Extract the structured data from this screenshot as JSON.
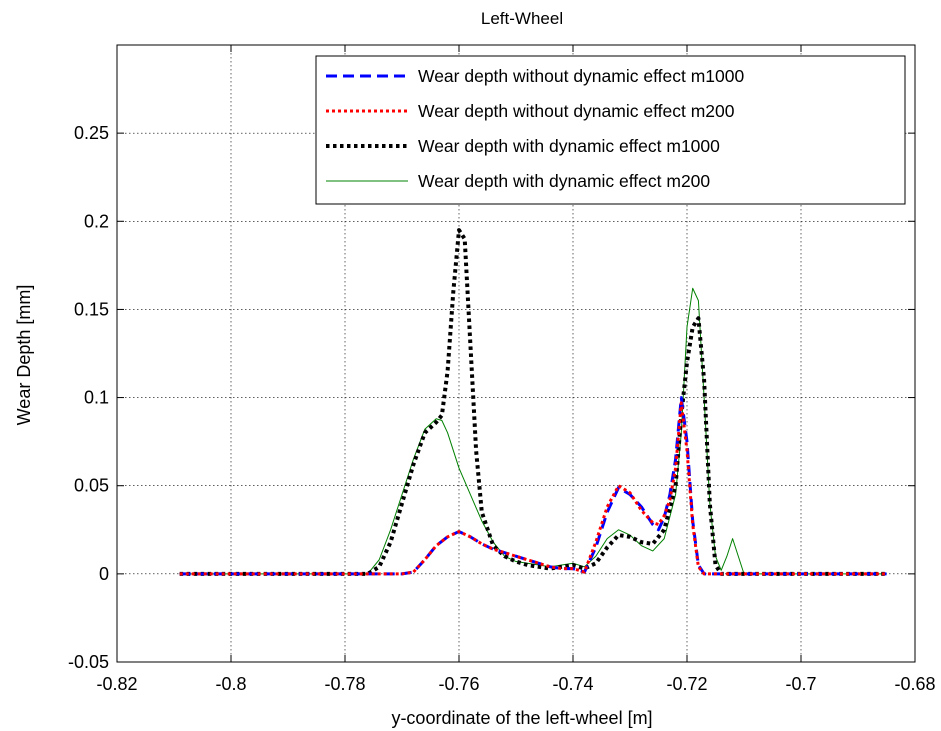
{
  "chart_data": {
    "type": "line",
    "title": "Left-Wheel",
    "xlabel": "y-coordinate of the left-wheel [m]",
    "ylabel": "Wear Depth [mm]",
    "xlim": [
      -0.82,
      -0.68
    ],
    "ylim": [
      -0.05,
      0.3
    ],
    "xticks": [
      -0.82,
      -0.8,
      -0.78,
      -0.76,
      -0.74,
      -0.72,
      -0.7,
      -0.68
    ],
    "xtick_labels": [
      "-0.82",
      "-0.8",
      "-0.78",
      "-0.76",
      "-0.74",
      "-0.72",
      "-0.7",
      "-0.68"
    ],
    "yticks": [
      -0.05,
      0,
      0.05,
      0.1,
      0.15,
      0.2,
      0.25
    ],
    "ytick_labels": [
      "-0.05",
      "0",
      "0.05",
      "0.1",
      "0.15",
      "0.2",
      "0.25"
    ],
    "grid": true,
    "legend_position": "top-right",
    "series": [
      {
        "name": "Wear depth without dynamic effect m1000",
        "color": "#0000ff",
        "style": "dashed",
        "points": [
          [
            -0.809,
            0
          ],
          [
            -0.77,
            0
          ],
          [
            -0.768,
            0.001
          ],
          [
            -0.766,
            0.008
          ],
          [
            -0.764,
            0.016
          ],
          [
            -0.762,
            0.021
          ],
          [
            -0.76,
            0.024
          ],
          [
            -0.758,
            0.021
          ],
          [
            -0.756,
            0.017
          ],
          [
            -0.754,
            0.014
          ],
          [
            -0.752,
            0.012
          ],
          [
            -0.75,
            0.01
          ],
          [
            -0.748,
            0.008
          ],
          [
            -0.746,
            0.006
          ],
          [
            -0.744,
            0.004
          ],
          [
            -0.742,
            0.003
          ],
          [
            -0.74,
            0.003
          ],
          [
            -0.738,
            0.001
          ],
          [
            -0.736,
            0.015
          ],
          [
            -0.734,
            0.035
          ],
          [
            -0.732,
            0.049
          ],
          [
            -0.73,
            0.045
          ],
          [
            -0.728,
            0.038
          ],
          [
            -0.726,
            0.028
          ],
          [
            -0.725,
            0.025
          ],
          [
            -0.724,
            0.032
          ],
          [
            -0.723,
            0.045
          ],
          [
            -0.722,
            0.065
          ],
          [
            -0.721,
            0.1
          ],
          [
            -0.72,
            0.075
          ],
          [
            -0.719,
            0.03
          ],
          [
            -0.718,
            0.005
          ],
          [
            -0.717,
            0
          ],
          [
            -0.685,
            0
          ]
        ]
      },
      {
        "name": "Wear depth without dynamic effect m200",
        "color": "#ff0000",
        "style": "dotted",
        "points": [
          [
            -0.809,
            0
          ],
          [
            -0.77,
            0
          ],
          [
            -0.768,
            0.001
          ],
          [
            -0.766,
            0.008
          ],
          [
            -0.764,
            0.016
          ],
          [
            -0.762,
            0.021
          ],
          [
            -0.76,
            0.024
          ],
          [
            -0.758,
            0.021
          ],
          [
            -0.756,
            0.017
          ],
          [
            -0.754,
            0.014
          ],
          [
            -0.752,
            0.012
          ],
          [
            -0.75,
            0.01
          ],
          [
            -0.748,
            0.008
          ],
          [
            -0.746,
            0.006
          ],
          [
            -0.744,
            0.004
          ],
          [
            -0.742,
            0.003
          ],
          [
            -0.74,
            0.003
          ],
          [
            -0.738,
            0.001
          ],
          [
            -0.736,
            0.018
          ],
          [
            -0.734,
            0.038
          ],
          [
            -0.732,
            0.05
          ],
          [
            -0.73,
            0.046
          ],
          [
            -0.728,
            0.036
          ],
          [
            -0.726,
            0.029
          ],
          [
            -0.725,
            0.028
          ],
          [
            -0.724,
            0.033
          ],
          [
            -0.723,
            0.042
          ],
          [
            -0.722,
            0.06
          ],
          [
            -0.721,
            0.097
          ],
          [
            -0.72,
            0.07
          ],
          [
            -0.719,
            0.028
          ],
          [
            -0.718,
            0.004
          ],
          [
            -0.717,
            0
          ],
          [
            -0.685,
            0
          ]
        ]
      },
      {
        "name": "Wear depth with dynamic effect m1000",
        "color": "#000000",
        "style": "dotted",
        "points": [
          [
            -0.809,
            0
          ],
          [
            -0.776,
            0
          ],
          [
            -0.774,
            0.004
          ],
          [
            -0.772,
            0.018
          ],
          [
            -0.77,
            0.04
          ],
          [
            -0.768,
            0.062
          ],
          [
            -0.766,
            0.08
          ],
          [
            -0.764,
            0.086
          ],
          [
            -0.763,
            0.09
          ],
          [
            -0.762,
            0.115
          ],
          [
            -0.761,
            0.16
          ],
          [
            -0.76,
            0.195
          ],
          [
            -0.759,
            0.19
          ],
          [
            -0.758,
            0.13
          ],
          [
            -0.757,
            0.07
          ],
          [
            -0.756,
            0.035
          ],
          [
            -0.754,
            0.016
          ],
          [
            -0.752,
            0.01
          ],
          [
            -0.75,
            0.007
          ],
          [
            -0.748,
            0.005
          ],
          [
            -0.746,
            0.004
          ],
          [
            -0.744,
            0.003
          ],
          [
            -0.742,
            0.004
          ],
          [
            -0.74,
            0.005
          ],
          [
            -0.738,
            0.003
          ],
          [
            -0.736,
            0.006
          ],
          [
            -0.734,
            0.015
          ],
          [
            -0.732,
            0.022
          ],
          [
            -0.73,
            0.021
          ],
          [
            -0.728,
            0.018
          ],
          [
            -0.726,
            0.017
          ],
          [
            -0.724,
            0.025
          ],
          [
            -0.722,
            0.05
          ],
          [
            -0.721,
            0.09
          ],
          [
            -0.72,
            0.12
          ],
          [
            -0.719,
            0.14
          ],
          [
            -0.718,
            0.145
          ],
          [
            -0.717,
            0.11
          ],
          [
            -0.716,
            0.04
          ],
          [
            -0.715,
            0.005
          ],
          [
            -0.714,
            0
          ],
          [
            -0.685,
            0
          ]
        ]
      },
      {
        "name": "Wear depth with dynamic effect m200",
        "color": "#008000",
        "style": "solid",
        "points": [
          [
            -0.809,
            0
          ],
          [
            -0.776,
            0
          ],
          [
            -0.774,
            0.008
          ],
          [
            -0.772,
            0.025
          ],
          [
            -0.77,
            0.045
          ],
          [
            -0.768,
            0.065
          ],
          [
            -0.766,
            0.082
          ],
          [
            -0.764,
            0.088
          ],
          [
            -0.763,
            0.087
          ],
          [
            -0.762,
            0.08
          ],
          [
            -0.76,
            0.06
          ],
          [
            -0.758,
            0.045
          ],
          [
            -0.756,
            0.03
          ],
          [
            -0.754,
            0.018
          ],
          [
            -0.752,
            0.01
          ],
          [
            -0.75,
            0.007
          ],
          [
            -0.748,
            0.006
          ],
          [
            -0.746,
            0.005
          ],
          [
            -0.744,
            0.004
          ],
          [
            -0.742,
            0.005
          ],
          [
            -0.74,
            0.006
          ],
          [
            -0.738,
            0.004
          ],
          [
            -0.736,
            0.01
          ],
          [
            -0.734,
            0.02
          ],
          [
            -0.732,
            0.025
          ],
          [
            -0.73,
            0.022
          ],
          [
            -0.728,
            0.016
          ],
          [
            -0.726,
            0.013
          ],
          [
            -0.724,
            0.02
          ],
          [
            -0.722,
            0.045
          ],
          [
            -0.721,
            0.08
          ],
          [
            -0.72,
            0.14
          ],
          [
            -0.719,
            0.162
          ],
          [
            -0.718,
            0.155
          ],
          [
            -0.717,
            0.1
          ],
          [
            -0.716,
            0.04
          ],
          [
            -0.715,
            0.01
          ],
          [
            -0.714,
            0.002
          ],
          [
            -0.713,
            0.01
          ],
          [
            -0.712,
            0.02
          ],
          [
            -0.711,
            0.01
          ],
          [
            -0.71,
            0
          ],
          [
            -0.685,
            0
          ]
        ]
      }
    ]
  }
}
